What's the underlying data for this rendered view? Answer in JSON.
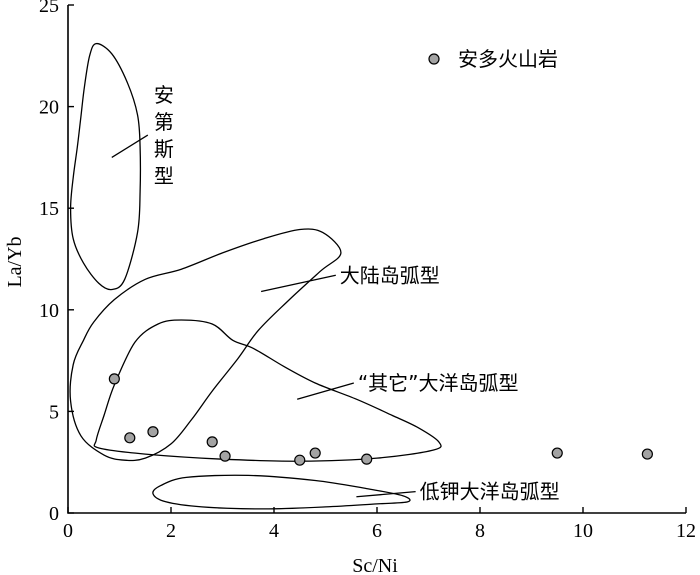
{
  "chart_data": {
    "type": "scatter",
    "xlabel": "Sc/Ni",
    "ylabel": "La/Yb",
    "xlim": [
      0,
      12
    ],
    "ylim": [
      0,
      25
    ],
    "x_ticks": [
      0,
      2,
      4,
      6,
      8,
      10,
      12
    ],
    "y_ticks": [
      0,
      5,
      10,
      15,
      20,
      25
    ],
    "grid": false,
    "legend_position": "top-right",
    "series": [
      {
        "name": "安多火山岩",
        "color": "#a3a3a3",
        "marker": "circle",
        "points": [
          {
            "x": 0.9,
            "y": 6.6
          },
          {
            "x": 1.2,
            "y": 3.7
          },
          {
            "x": 1.65,
            "y": 4.0
          },
          {
            "x": 2.8,
            "y": 3.5
          },
          {
            "x": 3.05,
            "y": 2.8
          },
          {
            "x": 4.5,
            "y": 2.6
          },
          {
            "x": 4.8,
            "y": 2.95
          },
          {
            "x": 5.8,
            "y": 2.65
          },
          {
            "x": 9.5,
            "y": 2.95
          },
          {
            "x": 11.25,
            "y": 2.9
          }
        ]
      }
    ],
    "regions": [
      {
        "label": "安第斯型",
        "label_orientation": "vertical",
        "outline": [
          [
            0.55,
            23.1
          ],
          [
            0.85,
            22.6
          ],
          [
            1.15,
            21.2
          ],
          [
            1.35,
            19.6
          ],
          [
            1.4,
            18.0
          ],
          [
            1.4,
            15.8
          ],
          [
            1.35,
            13.8
          ],
          [
            1.1,
            11.5
          ],
          [
            0.85,
            11.0
          ],
          [
            0.6,
            11.3
          ],
          [
            0.3,
            12.3
          ],
          [
            0.1,
            13.5
          ],
          [
            0.05,
            15.0
          ],
          [
            0.1,
            16.5
          ],
          [
            0.18,
            18.0
          ],
          [
            0.25,
            19.5
          ],
          [
            0.32,
            21.0
          ],
          [
            0.42,
            22.5
          ]
        ],
        "leader": [
          [
            0.85,
            17.5
          ],
          [
            1.55,
            18.6
          ]
        ]
      },
      {
        "label": "大陆岛弧型",
        "label_orientation": "horizontal",
        "outline": [
          [
            0.3,
            8.5
          ],
          [
            0.5,
            9.4
          ],
          [
            0.9,
            10.5
          ],
          [
            1.5,
            11.5
          ],
          [
            2.2,
            12.0
          ],
          [
            3.0,
            12.8
          ],
          [
            3.8,
            13.5
          ],
          [
            4.5,
            13.95
          ],
          [
            4.95,
            13.8
          ],
          [
            5.3,
            12.8
          ],
          [
            4.9,
            11.9
          ],
          [
            4.3,
            10.5
          ],
          [
            3.7,
            9.0
          ],
          [
            3.3,
            7.6
          ],
          [
            2.8,
            6.0
          ],
          [
            2.4,
            4.6
          ],
          [
            2.0,
            3.4
          ],
          [
            1.5,
            2.7
          ],
          [
            1.1,
            2.6
          ],
          [
            0.7,
            2.85
          ],
          [
            0.25,
            3.8
          ],
          [
            0.05,
            5.5
          ],
          [
            0.1,
            7.3
          ]
        ],
        "leader": [
          [
            3.75,
            10.9
          ],
          [
            5.2,
            11.7
          ]
        ]
      },
      {
        "label": "“其它”大洋岛弧型",
        "label_orientation": "horizontal",
        "outline": [
          [
            1.3,
            8.4
          ],
          [
            1.75,
            9.3
          ],
          [
            2.2,
            9.5
          ],
          [
            2.8,
            9.3
          ],
          [
            3.2,
            8.5
          ],
          [
            3.6,
            8.1
          ],
          [
            4.2,
            7.2
          ],
          [
            4.8,
            6.4
          ],
          [
            5.6,
            5.6
          ],
          [
            6.3,
            4.8
          ],
          [
            6.8,
            4.2
          ],
          [
            7.2,
            3.5
          ],
          [
            7.1,
            3.1
          ],
          [
            6.0,
            2.7
          ],
          [
            4.5,
            2.55
          ],
          [
            3.0,
            2.65
          ],
          [
            1.5,
            2.9
          ],
          [
            0.6,
            3.2
          ],
          [
            0.55,
            3.6
          ],
          [
            0.7,
            4.8
          ],
          [
            0.9,
            6.3
          ]
        ],
        "leader": [
          [
            4.45,
            5.6
          ],
          [
            5.55,
            6.4
          ]
        ]
      },
      {
        "label": "低钾大洋岛弧型",
        "label_orientation": "horizontal",
        "outline": [
          [
            1.8,
            1.35
          ],
          [
            2.3,
            1.75
          ],
          [
            3.5,
            1.85
          ],
          [
            4.8,
            1.6
          ],
          [
            5.8,
            1.2
          ],
          [
            6.5,
            0.85
          ],
          [
            6.6,
            0.55
          ],
          [
            6.0,
            0.45
          ],
          [
            5.0,
            0.3
          ],
          [
            3.8,
            0.2
          ],
          [
            2.6,
            0.3
          ],
          [
            1.9,
            0.55
          ],
          [
            1.65,
            0.95
          ]
        ],
        "leader": [
          [
            5.6,
            0.8
          ],
          [
            6.75,
            1.05
          ]
        ]
      }
    ]
  }
}
